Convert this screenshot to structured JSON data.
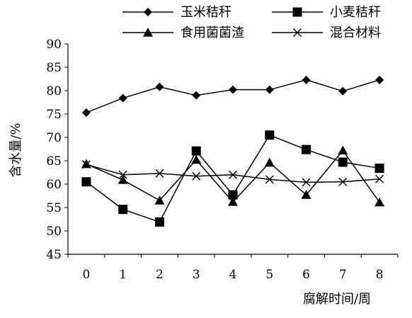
{
  "chart_data": {
    "type": "line",
    "title": "",
    "xlabel": "腐解时间/周",
    "ylabel": "含水量/%",
    "x": [
      0,
      1,
      2,
      3,
      4,
      5,
      6,
      7,
      8
    ],
    "ylim": [
      45,
      90
    ],
    "yticks": [
      45,
      50,
      55,
      60,
      65,
      70,
      75,
      80,
      85,
      90
    ],
    "grid": false,
    "legend_position": "top",
    "series": [
      {
        "name": "玉米秸秆",
        "marker": "diamond",
        "values": [
          75.3,
          78.4,
          80.8,
          79.0,
          80.2,
          80.2,
          82.3,
          79.9,
          82.3
        ]
      },
      {
        "name": "小麦秸秆",
        "marker": "square",
        "values": [
          60.5,
          54.6,
          51.9,
          67.1,
          57.7,
          70.5,
          67.4,
          64.7,
          63.4
        ]
      },
      {
        "name": "食用菌菌渣",
        "marker": "triangle",
        "values": [
          64.3,
          60.9,
          56.5,
          65.2,
          56.2,
          64.6,
          57.7,
          67.2,
          56.1
        ]
      },
      {
        "name": "混合材料",
        "marker": "x",
        "values": [
          64.2,
          62.0,
          62.3,
          61.7,
          62.0,
          61.0,
          60.4,
          60.5,
          61.1
        ]
      }
    ],
    "colors": {
      "line": "#000000",
      "background": "#ffffff"
    }
  }
}
